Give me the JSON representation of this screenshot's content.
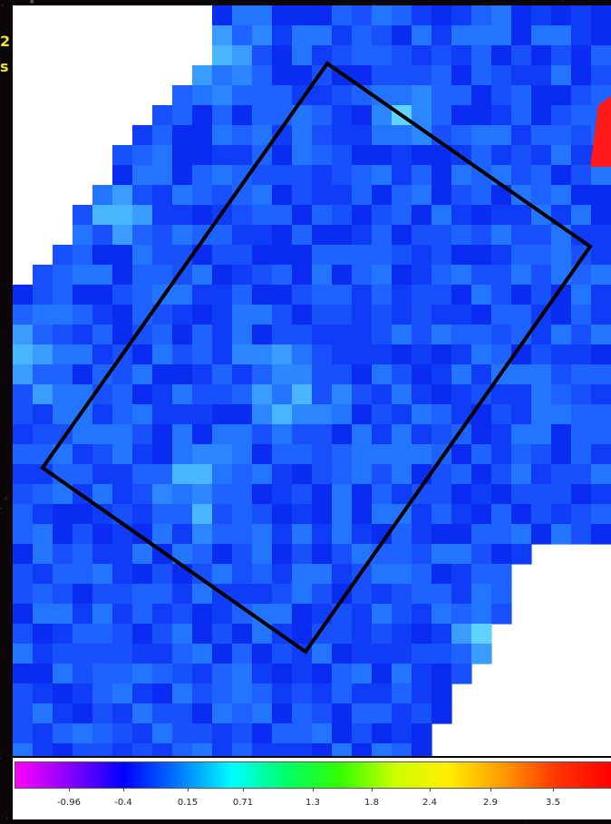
{
  "side_labels": [
    "2",
    "s"
  ],
  "colorbar": {
    "ticks": [
      "-0.96",
      "-0.4",
      "0.15",
      "0.71",
      "1.3",
      "1.8",
      "2.4",
      "2.9",
      "3.5"
    ],
    "colors": [
      "#ff00ff",
      "#8800ff",
      "#0000ff",
      "#0077ff",
      "#00ffff",
      "#00ff66",
      "#33ff00",
      "#ccff00",
      "#ffee00",
      "#ff9900",
      "#ff3300",
      "#ff0000"
    ]
  },
  "map_colors": [
    "#0a2cf0",
    "#0f3cf6",
    "#1850fb",
    "#1e63ff",
    "#2374ff",
    "#2c86ff",
    "#3a9cff",
    "#49b6ff",
    "#60d4ff"
  ],
  "accent": {
    "outline": "#000000",
    "arrow": "#ff1a1a"
  }
}
